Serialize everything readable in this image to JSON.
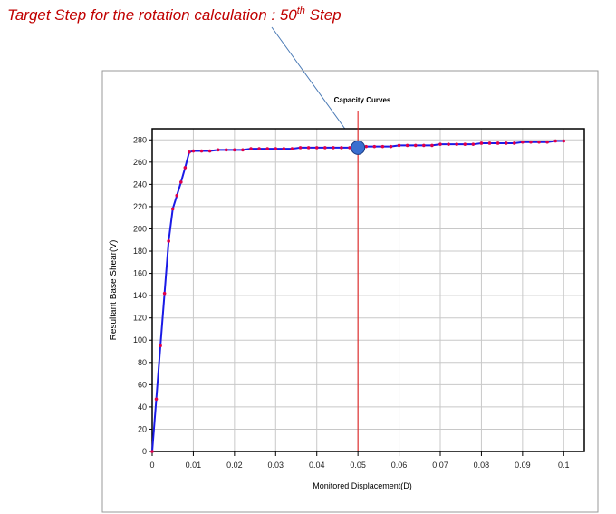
{
  "chart_data": {
    "type": "line",
    "annotation": {
      "text": "Target Step for the rotation calculation : 50",
      "superscript": "th",
      "suffix": " Step"
    },
    "title": "Capacity Curves",
    "x_label": "Monitored Displacement(D)",
    "y_label": "Resultant Base Shear(V)",
    "x": [
      0,
      0.001,
      0.002,
      0.003,
      0.004,
      0.005,
      0.006,
      0.007,
      0.008,
      0.009,
      0.01,
      0.012,
      0.014,
      0.016,
      0.018,
      0.02,
      0.022,
      0.024,
      0.026,
      0.028,
      0.03,
      0.032,
      0.034,
      0.036,
      0.038,
      0.04,
      0.042,
      0.044,
      0.046,
      0.048,
      0.05,
      0.052,
      0.054,
      0.056,
      0.058,
      0.06,
      0.062,
      0.064,
      0.066,
      0.068,
      0.07,
      0.072,
      0.074,
      0.076,
      0.078,
      0.08,
      0.082,
      0.084,
      0.086,
      0.088,
      0.09,
      0.092,
      0.094,
      0.096,
      0.098,
      0.1
    ],
    "series": [
      {
        "color": "#1a1ae6",
        "marker_color": "#e0004a",
        "values": [
          0,
          47,
          95,
          142,
          189,
          218,
          230,
          242,
          255,
          269,
          270,
          270,
          270,
          271,
          271,
          271,
          271,
          272,
          272,
          272,
          272,
          272,
          272,
          273,
          273,
          273,
          273,
          273,
          273,
          273,
          273,
          274,
          274,
          274,
          274,
          275,
          275,
          275,
          275,
          275,
          276,
          276,
          276,
          276,
          276,
          277,
          277,
          277,
          277,
          277,
          278,
          278,
          278,
          278,
          279,
          279
        ]
      }
    ],
    "target": {
      "x": 0.05,
      "y": 273,
      "color": "#3a6fd0",
      "line_color": "#e01010"
    },
    "xlim": [
      0,
      0.105
    ],
    "ylim": [
      0,
      290
    ],
    "xticks": [
      0,
      0.01,
      0.02,
      0.03,
      0.04,
      0.05,
      0.06,
      0.07,
      0.08,
      0.09,
      0.1
    ],
    "yticks": [
      0,
      20,
      40,
      60,
      80,
      100,
      120,
      140,
      160,
      180,
      200,
      220,
      240,
      260,
      280
    ],
    "grid": true
  }
}
